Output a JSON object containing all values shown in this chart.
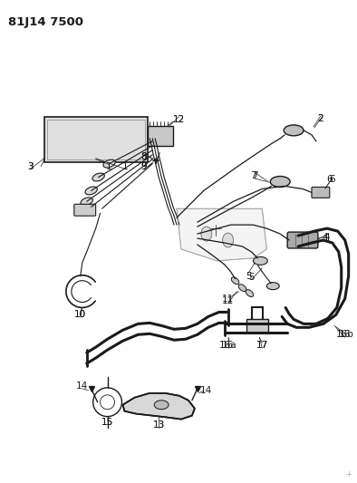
{
  "title": "81J14 7500",
  "bg_color": "#ffffff",
  "line_color": "#1a1a1a",
  "fig_width": 3.94,
  "fig_height": 5.33,
  "dpi": 100
}
